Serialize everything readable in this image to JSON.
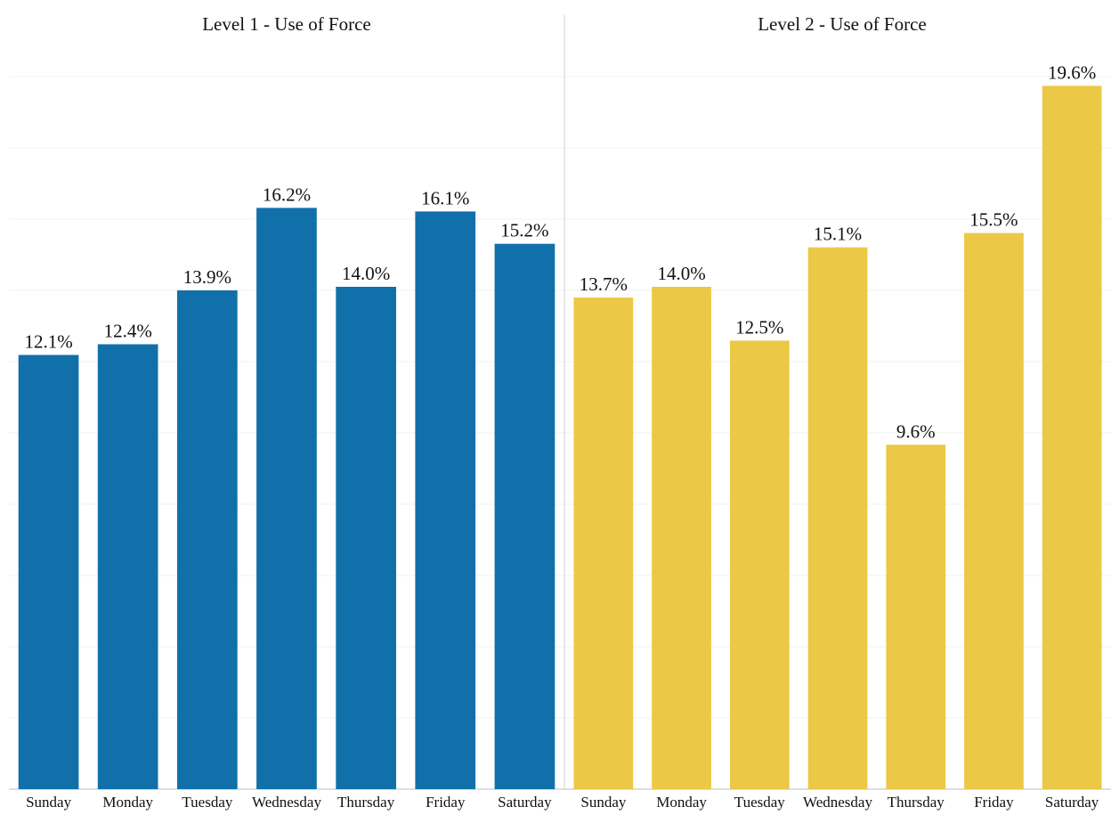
{
  "chart_data": [
    {
      "type": "bar",
      "title": "Level 1 - Use of Force",
      "categories": [
        "Sunday",
        "Monday",
        "Tuesday",
        "Wednesday",
        "Thursday",
        "Friday",
        "Saturday"
      ],
      "values": [
        12.1,
        12.4,
        13.9,
        16.2,
        14.0,
        16.1,
        15.2
      ],
      "data_labels": [
        "12.1%",
        "12.4%",
        "13.9%",
        "16.2%",
        "14.0%",
        "16.1%",
        "15.2%"
      ],
      "color": "#1170aa",
      "ylim": [
        0,
        21
      ],
      "grid": true,
      "xlabel": "",
      "ylabel": ""
    },
    {
      "type": "bar",
      "title": "Level 2 - Use of Force",
      "categories": [
        "Sunday",
        "Monday",
        "Tuesday",
        "Wednesday",
        "Thursday",
        "Friday",
        "Saturday"
      ],
      "values": [
        13.7,
        14.0,
        12.5,
        15.1,
        9.6,
        15.5,
        19.6
      ],
      "data_labels": [
        "13.7%",
        "14.0%",
        "12.5%",
        "15.1%",
        "9.6%",
        "15.5%",
        "19.6%"
      ],
      "color": "#ebc845",
      "ylim": [
        0,
        21
      ],
      "grid": true,
      "xlabel": "",
      "ylabel": ""
    }
  ]
}
